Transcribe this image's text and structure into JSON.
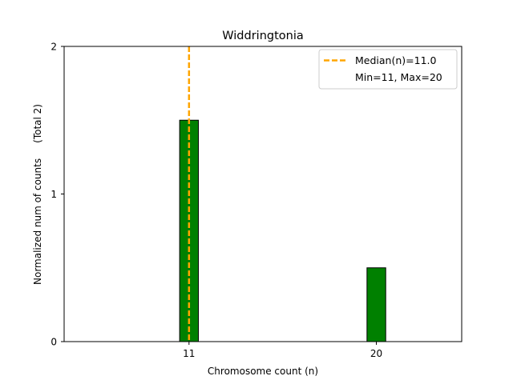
{
  "chart_data": {
    "type": "bar",
    "title": "Widdringtonia",
    "xlabel": "Chromosome count (n)",
    "ylabel": "Normalized num of counts     (Total 2)",
    "x_ticks": [
      11,
      20
    ],
    "x_tick_labels": [
      "11",
      "20"
    ],
    "y_ticks": [
      0,
      1,
      2
    ],
    "y_tick_labels": [
      "0",
      "1",
      "2"
    ],
    "ylim": [
      0,
      2
    ],
    "xlim": [
      5.0,
      24.1
    ],
    "grid": false,
    "legend_position": "top-right",
    "bar_color": "#008000",
    "bar_edge_color": "#000000",
    "bar_width": 0.9,
    "series": [
      {
        "x": [
          11,
          20
        ],
        "values": [
          1.5,
          0.5
        ]
      }
    ],
    "median_line": {
      "x": 11.0,
      "color": "#FFA500",
      "style": "dashed",
      "label": "Median(n)=11.0"
    },
    "legend": [
      {
        "label": "Median(n)=11.0",
        "kind": "dashed-line",
        "color": "#FFA500"
      },
      {
        "label": "Min=11, Max=20",
        "kind": "text-only"
      }
    ]
  }
}
